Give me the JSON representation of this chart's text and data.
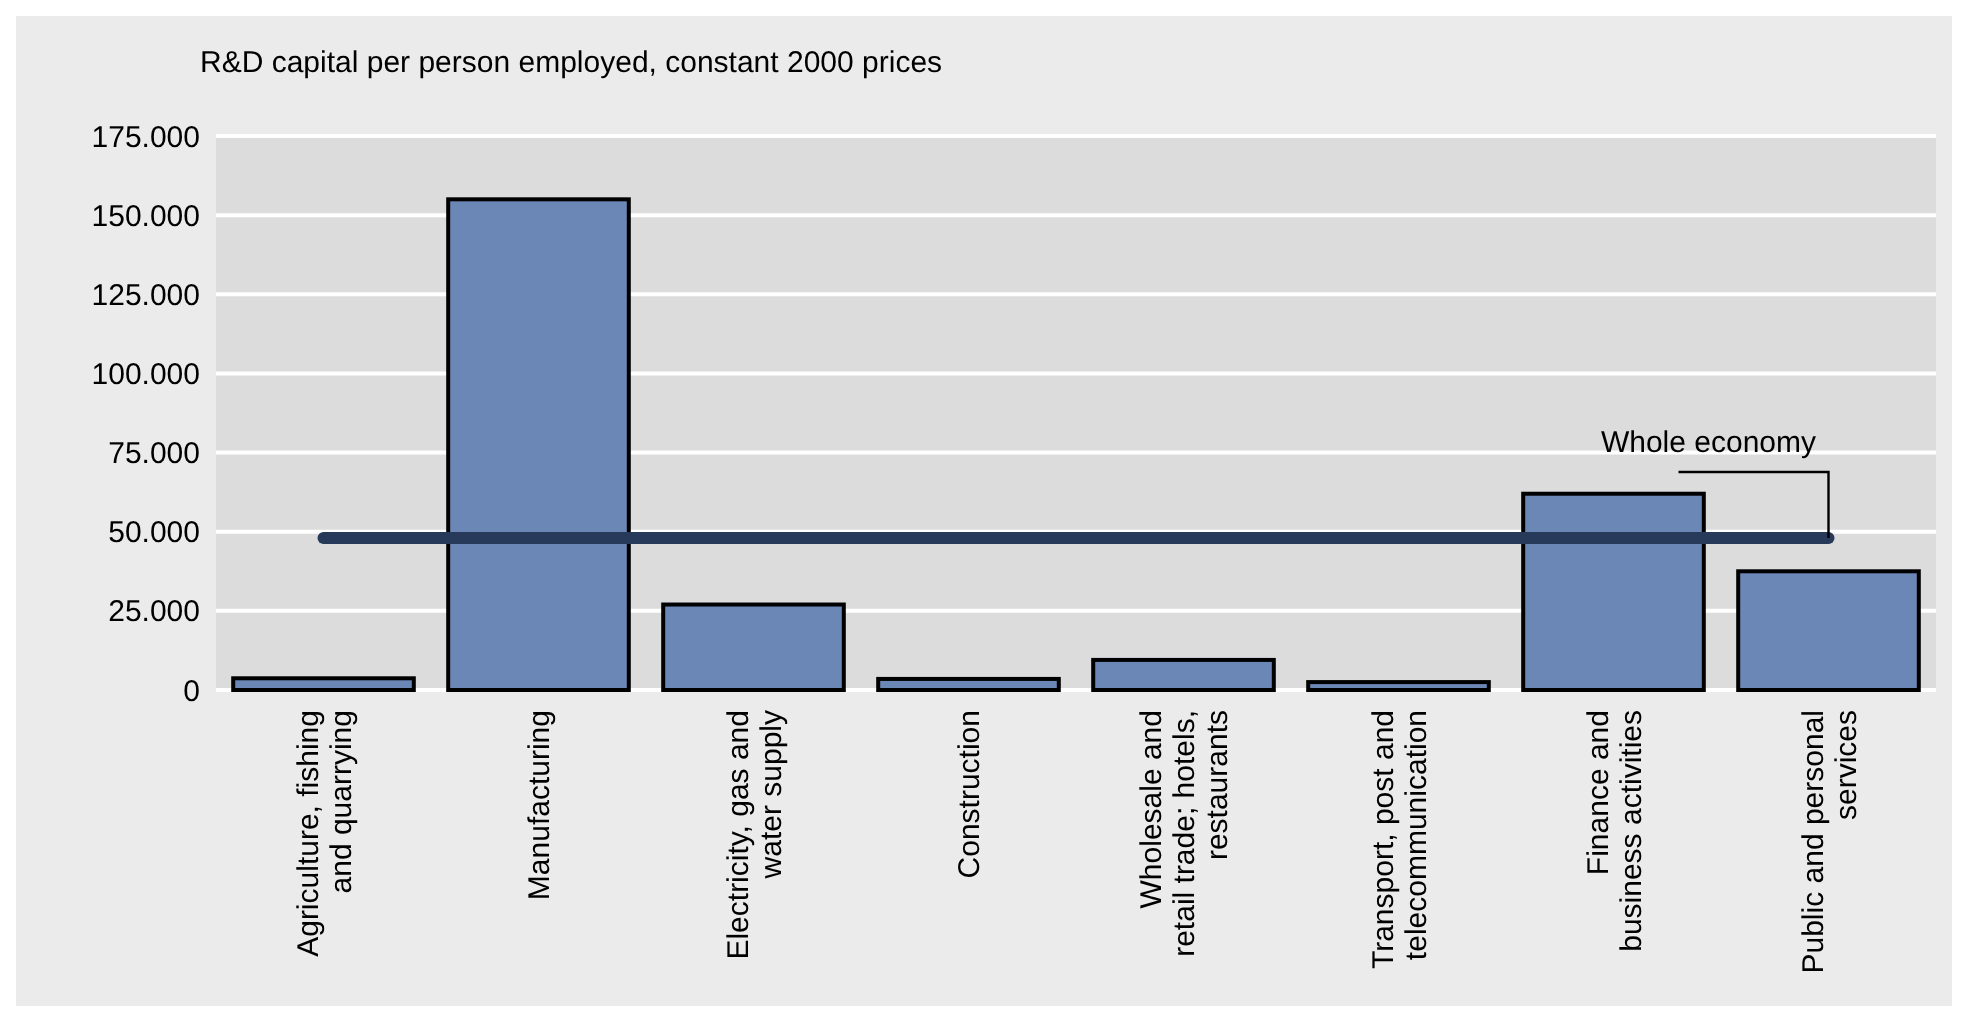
{
  "chart_data": {
    "type": "bar",
    "title": "R&D capital per person employed, constant 2000 prices",
    "categories": [
      "Agriculture, fishing\nand quarrying",
      "Manufacturing",
      "Electricity, gas and\nwater supply",
      "Construction",
      "Wholesale and\nretail trade; hotels,\nrestaurants",
      "Transport, post and\ntelecommunication",
      "Finance and\nbusiness activities",
      "Public and personal\nservices"
    ],
    "series": [
      {
        "color": "#6b87b5",
        "values": [
          3700,
          155000,
          27000,
          3500,
          9500,
          2500,
          62000,
          37500
        ]
      },
      {
        "type": "line",
        "name": "Whole economy",
        "color": "#283a5a",
        "values": [
          48000,
          48000,
          48000,
          48000,
          48000,
          48000,
          48000,
          48000
        ]
      }
    ],
    "ylim": [
      0,
      175000
    ],
    "yticks": [
      0,
      {
        "value": 25000,
        "label": "25.000"
      },
      {
        "value": 50000,
        "label": "50.000"
      },
      {
        "value": 75000,
        "label": "75.000"
      },
      {
        "value": 100000,
        "label": "100.000"
      },
      {
        "value": 125000,
        "label": "125.000"
      },
      {
        "value": 150000,
        "label": "150.000"
      },
      {
        "value": 175000,
        "label": "175.000"
      }
    ],
    "grid": "y",
    "marker": "none",
    "line_style": "solid"
  }
}
